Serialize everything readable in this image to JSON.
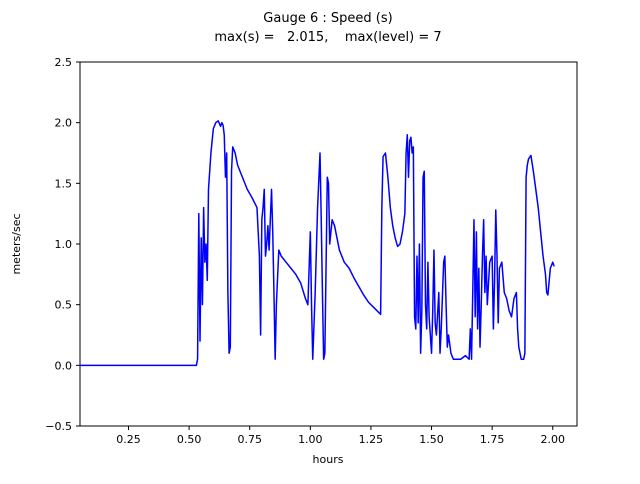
{
  "chart_data": {
    "type": "line",
    "title": "Gauge 6 : Speed (s)",
    "subtitle": "max(s) =   2.015,    max(level) = 7",
    "xlabel": "hours",
    "ylabel": "meters/sec",
    "xlim": [
      0.05,
      2.1
    ],
    "ylim": [
      -0.5,
      2.5
    ],
    "xticks": [
      0.25,
      0.5,
      0.75,
      1.0,
      1.25,
      1.5,
      1.75,
      2.0
    ],
    "xtick_labels": [
      "0.25",
      "0.50",
      "0.75",
      "1.00",
      "1.25",
      "1.50",
      "1.75",
      "2.00"
    ],
    "yticks": [
      -0.5,
      0.0,
      0.5,
      1.0,
      1.5,
      2.0,
      2.5
    ],
    "ytick_labels": [
      "−0.5",
      "0.0",
      "0.5",
      "1.0",
      "1.5",
      "2.0",
      "2.5"
    ],
    "grid": false,
    "legend": "none",
    "line_color": "#0000ff",
    "line_width": 1.5,
    "max_s": 2.015,
    "max_level": 7,
    "series": [
      {
        "name": "speed",
        "x": [
          0.05,
          0.1,
          0.15,
          0.2,
          0.25,
          0.3,
          0.35,
          0.4,
          0.45,
          0.5,
          0.53,
          0.535,
          0.54,
          0.545,
          0.55,
          0.555,
          0.56,
          0.565,
          0.57,
          0.575,
          0.58,
          0.59,
          0.6,
          0.61,
          0.62,
          0.63,
          0.635,
          0.64,
          0.645,
          0.65,
          0.655,
          0.66,
          0.665,
          0.67,
          0.675,
          0.68,
          0.69,
          0.7,
          0.72,
          0.74,
          0.76,
          0.78,
          0.785,
          0.79,
          0.795,
          0.8,
          0.805,
          0.81,
          0.815,
          0.82,
          0.825,
          0.83,
          0.835,
          0.84,
          0.845,
          0.85,
          0.855,
          0.86,
          0.87,
          0.88,
          0.9,
          0.92,
          0.94,
          0.96,
          0.98,
          0.99,
          1.0,
          1.005,
          1.01,
          1.02,
          1.03,
          1.04,
          1.045,
          1.05,
          1.055,
          1.06,
          1.07,
          1.075,
          1.08,
          1.09,
          1.1,
          1.12,
          1.14,
          1.16,
          1.18,
          1.2,
          1.22,
          1.24,
          1.26,
          1.28,
          1.29,
          1.295,
          1.3,
          1.31,
          1.32,
          1.33,
          1.34,
          1.35,
          1.36,
          1.37,
          1.38,
          1.39,
          1.395,
          1.4,
          1.405,
          1.41,
          1.415,
          1.42,
          1.425,
          1.43,
          1.435,
          1.44,
          1.445,
          1.45,
          1.455,
          1.46,
          1.465,
          1.47,
          1.475,
          1.48,
          1.485,
          1.49,
          1.5,
          1.505,
          1.51,
          1.515,
          1.52,
          1.53,
          1.535,
          1.54,
          1.55,
          1.555,
          1.56,
          1.565,
          1.57,
          1.58,
          1.59,
          1.6,
          1.62,
          1.64,
          1.655,
          1.66,
          1.665,
          1.67,
          1.675,
          1.68,
          1.685,
          1.69,
          1.695,
          1.7,
          1.705,
          1.71,
          1.715,
          1.72,
          1.725,
          1.73,
          1.74,
          1.75,
          1.755,
          1.76,
          1.765,
          1.77,
          1.775,
          1.78,
          1.79,
          1.8,
          1.81,
          1.82,
          1.83,
          1.84,
          1.85,
          1.855,
          1.86,
          1.87,
          1.88,
          1.885,
          1.89,
          1.895,
          1.9,
          1.91,
          1.92,
          1.93,
          1.94,
          1.95,
          1.96,
          1.97,
          1.975,
          1.98,
          1.99,
          2.0,
          2.005
        ],
        "y": [
          0,
          0,
          0,
          0,
          0,
          0,
          0,
          0,
          0,
          0,
          0,
          0.05,
          1.25,
          0.2,
          1.05,
          0.5,
          1.3,
          0.85,
          1.0,
          0.7,
          1.45,
          1.75,
          1.95,
          2.0,
          2.015,
          1.97,
          2.0,
          1.98,
          1.9,
          1.55,
          1.75,
          0.6,
          0.1,
          0.15,
          1.6,
          1.8,
          1.75,
          1.65,
          1.55,
          1.45,
          1.38,
          1.3,
          1.1,
          0.9,
          0.25,
          1.2,
          1.3,
          1.45,
          0.9,
          1.0,
          1.15,
          0.95,
          1.2,
          1.45,
          1.1,
          0.6,
          0.05,
          0.5,
          0.95,
          0.9,
          0.85,
          0.8,
          0.75,
          0.68,
          0.55,
          0.5,
          1.1,
          0.5,
          0.05,
          0.6,
          1.3,
          1.75,
          1.2,
          0.6,
          0.05,
          0.1,
          1.55,
          1.5,
          1.0,
          1.2,
          1.15,
          0.95,
          0.85,
          0.8,
          0.72,
          0.65,
          0.58,
          0.52,
          0.48,
          0.44,
          0.42,
          1.3,
          1.72,
          1.75,
          1.55,
          1.3,
          1.15,
          1.05,
          0.98,
          1.0,
          1.1,
          1.25,
          1.75,
          1.9,
          1.55,
          1.85,
          1.88,
          1.75,
          1.8,
          0.4,
          0.3,
          0.9,
          0.35,
          1.0,
          0.1,
          0.45,
          1.55,
          1.6,
          0.5,
          0.3,
          0.85,
          0.4,
          0.1,
          0.45,
          0.95,
          0.35,
          0.25,
          0.6,
          0.1,
          0.3,
          0.85,
          0.9,
          0.5,
          0.15,
          0.25,
          0.1,
          0.05,
          0.05,
          0.05,
          0.08,
          0.05,
          0.3,
          0.05,
          0.6,
          1.2,
          0.4,
          1.1,
          0.3,
          0.8,
          0.15,
          0.5,
          0.9,
          1.2,
          0.6,
          0.9,
          0.5,
          0.85,
          0.9,
          0.3,
          0.7,
          1.28,
          0.9,
          0.35,
          0.8,
          0.85,
          0.6,
          0.55,
          0.45,
          0.4,
          0.55,
          0.6,
          0.3,
          0.15,
          0.05,
          0.05,
          0.1,
          1.55,
          1.65,
          1.7,
          1.73,
          1.6,
          1.45,
          1.3,
          1.1,
          0.9,
          0.75,
          0.6,
          0.58,
          0.8,
          0.85,
          0.82
        ]
      }
    ]
  }
}
